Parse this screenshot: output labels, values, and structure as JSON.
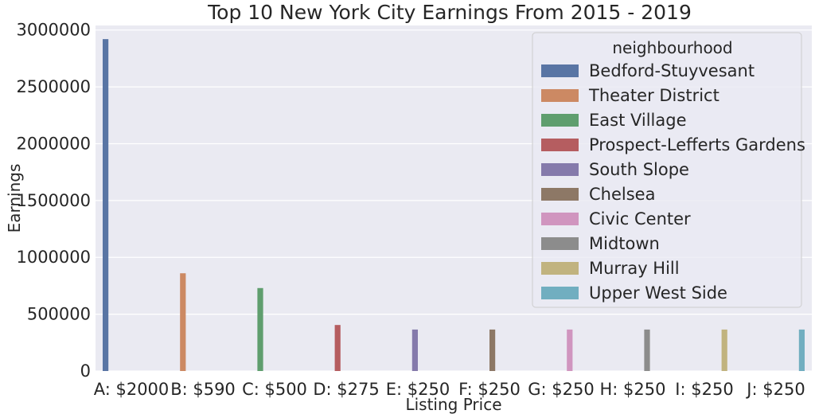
{
  "chart_data": {
    "type": "bar",
    "title": "Top 10 New York City Earnings From 2015 - 2019",
    "xlabel": "Listing Price",
    "ylabel": "Earnings",
    "ylim": [
      0,
      3040000
    ],
    "yticks": [
      0,
      500000,
      1000000,
      1500000,
      2000000,
      2500000,
      3000000
    ],
    "ytick_labels": [
      "0",
      "500000",
      "1000000",
      "1500000",
      "2000000",
      "2500000",
      "3000000"
    ],
    "grid": true,
    "legend_position": "top-right",
    "legend_title": "neighbourhood",
    "categories": [
      "A: $2000",
      "B: $590",
      "C: $500",
      "D: $275",
      "E: $250",
      "F: $250",
      "G: $250",
      "H: $250",
      "I: $250",
      "J: $250"
    ],
    "series": [
      {
        "name": "Bedford-Stuyvesant",
        "color": "#5975a4",
        "values": [
          2920000,
          null,
          null,
          null,
          null,
          null,
          null,
          null,
          null,
          null
        ]
      },
      {
        "name": "Theater District",
        "color": "#cc8963",
        "values": [
          null,
          860000,
          null,
          null,
          null,
          null,
          null,
          null,
          null,
          null
        ]
      },
      {
        "name": "East Village",
        "color": "#5f9e6e",
        "values": [
          null,
          null,
          730000,
          null,
          null,
          null,
          null,
          null,
          null,
          null
        ]
      },
      {
        "name": "Prospect-Lefferts Gardens",
        "color": "#b55d60",
        "values": [
          null,
          null,
          null,
          405000,
          null,
          null,
          null,
          null,
          null,
          null
        ]
      },
      {
        "name": "South Slope",
        "color": "#857aab",
        "values": [
          null,
          null,
          null,
          null,
          365000,
          null,
          null,
          null,
          null,
          null
        ]
      },
      {
        "name": "Chelsea",
        "color": "#8d7866",
        "values": [
          null,
          null,
          null,
          null,
          null,
          365000,
          null,
          null,
          null,
          null
        ]
      },
      {
        "name": "Civic Center",
        "color": "#d095bf",
        "values": [
          null,
          null,
          null,
          null,
          null,
          null,
          365000,
          null,
          null,
          null
        ]
      },
      {
        "name": "Midtown",
        "color": "#8c8c8c",
        "values": [
          null,
          null,
          null,
          null,
          null,
          null,
          null,
          365000,
          null,
          null
        ]
      },
      {
        "name": "Murray Hill",
        "color": "#c1b37f",
        "values": [
          null,
          null,
          null,
          null,
          null,
          null,
          null,
          null,
          365000,
          null
        ]
      },
      {
        "name": "Upper West Side",
        "color": "#71aec0",
        "values": [
          null,
          null,
          null,
          null,
          null,
          null,
          null,
          null,
          null,
          365000
        ]
      }
    ]
  }
}
